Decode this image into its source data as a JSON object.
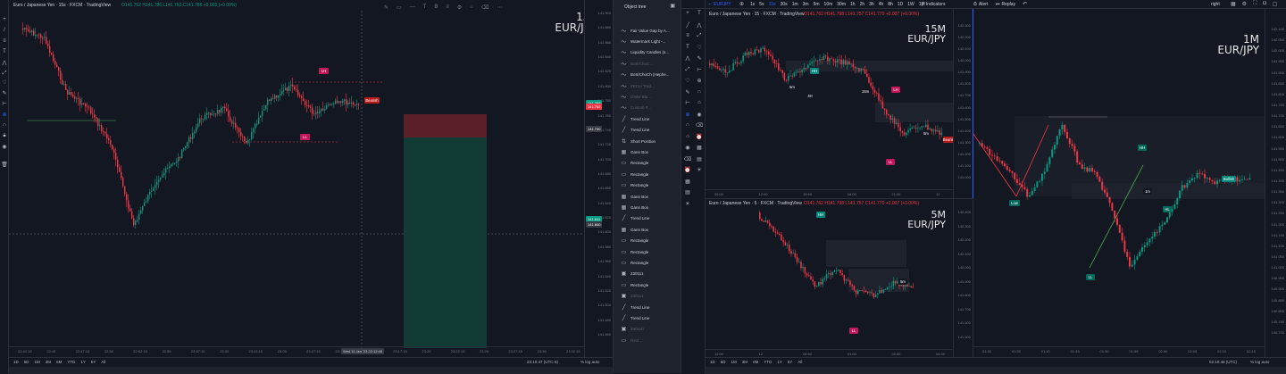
{
  "left": {
    "title": "Euro / Japanese Yen · 15s · FXCM · TradingView",
    "ohlc": "O141.762 H141.786 L141.762 C141.786 +0.003 (+0.00%)",
    "watermark": {
      "tf": "15S",
      "pair": "EUR/JPY"
    },
    "y_ticks": [
      "141.900",
      "141.880",
      "141.860",
      "141.840",
      "141.820",
      "141.800",
      "141.780",
      "141.760",
      "141.740",
      "141.720",
      "141.700",
      "141.680",
      "141.660",
      "141.640",
      "141.620",
      "141.600",
      "141.580",
      "141.560",
      "141.540",
      "141.520",
      "141.500",
      "141.480",
      "141.460"
    ],
    "price_tags": [
      {
        "text": "141.768",
        "color": "#089981"
      },
      {
        "text": "141.762",
        "color": "#f23645"
      },
      {
        "text": "141.730",
        "color": "#363a45"
      },
      {
        "text": "141.611",
        "color": "#089981"
      },
      {
        "text": "141.600",
        "color": "#363a45"
      }
    ],
    "x_ticks": [
      "22:42:15",
      "22:45",
      "22:47:15",
      "22:50",
      "22:52:15",
      "22:55",
      "22:57:15",
      "23:00",
      "23:02:15",
      "23:05",
      "23:07:15",
      "23:10",
      "23:15",
      "23:17:15",
      "23:20",
      "23:22:15",
      "23:25",
      "23:27:15",
      "23:30",
      "23:32:15"
    ],
    "crosshair_date": "Wed 11 Jan '23  22:12:45",
    "timeframes": [
      "1D",
      "5D",
      "1M",
      "3M",
      "6M",
      "YTD",
      "1Y",
      "5Y",
      "All"
    ],
    "clock": "23:10:47 (UTC-5)",
    "scale_opts": [
      "%",
      "log",
      "auto"
    ],
    "labels": {
      "ll": "LL",
      "lh": "LH",
      "bearish": "Bearish",
      "lh_small": "LH",
      "ll_small": "LL"
    }
  },
  "object_tree": {
    "title": "Object tree",
    "items": [
      {
        "label": "Fair Value Gap by A...",
        "icon": "indicator",
        "dim": false
      },
      {
        "label": "Watermark Light -...",
        "icon": "indicator",
        "dim": false
      },
      {
        "label": "Liquidity Candles (s...",
        "icon": "indicator",
        "dim": false
      },
      {
        "label": "BoS/ChoC...",
        "icon": "indicator",
        "dim": true
      },
      {
        "label": "BoS/ChoCh (Hephe...",
        "icon": "indicator",
        "dim": false
      },
      {
        "label": "ZECLI Trad...",
        "icon": "indicator",
        "dim": true
      },
      {
        "label": "Order Blo...",
        "icon": "indicator",
        "dim": true
      },
      {
        "label": "Custom P...",
        "icon": "indicator",
        "dim": true
      },
      {
        "label": "Trend Line",
        "icon": "line",
        "dim": false
      },
      {
        "label": "Trend Line",
        "icon": "line",
        "dim": false
      },
      {
        "label": "Short Position",
        "icon": "short",
        "dim": false
      },
      {
        "label": "Gann Box",
        "icon": "grid",
        "dim": false
      },
      {
        "label": "Rectangle",
        "icon": "rect",
        "dim": false
      },
      {
        "label": "Rectangle",
        "icon": "rect",
        "dim": false
      },
      {
        "label": "Rectangle",
        "icon": "rect",
        "dim": false
      },
      {
        "label": "Gann Box",
        "icon": "grid",
        "dim": false
      },
      {
        "label": "Gann Box",
        "icon": "grid",
        "dim": false
      },
      {
        "label": "Trend Line",
        "icon": "line",
        "dim": false
      },
      {
        "label": "Gann Box",
        "icon": "grid",
        "dim": false
      },
      {
        "label": "Rectangle",
        "icon": "rect",
        "dim": false
      },
      {
        "label": "Rectangle",
        "icon": "rect",
        "dim": false
      },
      {
        "label": "Rectangle",
        "icon": "rect",
        "dim": false
      },
      {
        "label": "230111",
        "icon": "folder",
        "dim": false
      },
      {
        "label": "Rectangle",
        "icon": "rect",
        "dim": false
      },
      {
        "label": "230111",
        "icon": "folder",
        "dim": true
      },
      {
        "label": "Trend Line",
        "icon": "line",
        "dim": false
      },
      {
        "label": "Trend Line",
        "icon": "line",
        "dim": false
      },
      {
        "label": "230110",
        "icon": "folder",
        "dim": true
      },
      {
        "label": "Rect...",
        "icon": "rect",
        "dim": true
      }
    ]
  },
  "topbar": {
    "symbol": "EURJPY",
    "intervals": [
      "1s",
      "5s",
      "15s",
      "30s",
      "1m",
      "3m",
      "5m",
      "10m",
      "30m",
      "1h",
      "2h",
      "3h",
      "4h",
      "8h",
      "1D",
      "1W",
      "1M"
    ],
    "indicators": "Indicators",
    "alert": "Alert",
    "replay": "Replay",
    "layout": "right"
  },
  "tr": {
    "title": "Euro / Japanese Yen · 15 · FXCM · TradingView",
    "ohlc": "O141.762 H141.798 L141.757 C141.770 +0.007 (+0.00%)",
    "watermark": {
      "tf": "15M",
      "pair": "EUR/JPY"
    },
    "y_ticks": [
      "142.300",
      "142.200",
      "142.100",
      "142.000",
      "141.900",
      "141.800",
      "141.700",
      "141.600",
      "141.500",
      "141.400",
      "141.300",
      "141.200",
      "141.100",
      "141.000"
    ],
    "x_ticks": [
      "09:00",
      "12:00",
      "15:00",
      "18:00",
      "21:00",
      "12"
    ],
    "labels": {
      "a": "5m",
      "b": "4H",
      "c": "15m",
      "d": "LH",
      "e": "Bearish",
      "f": "5m",
      "g": "LL",
      "h": "HH"
    }
  },
  "br": {
    "title": "Euro / Japanese Yen · 5 · FXCM · TradingView",
    "ohlc": "O141.762 H141.798 L141.757 C141.770 +0.007 (+0.00%)",
    "watermark": {
      "tf": "5M",
      "pair": "EUR/JPY"
    },
    "y_ticks": [
      "142.400",
      "142.300",
      "142.200",
      "142.100",
      "142.000",
      "141.900",
      "141.800",
      "141.700",
      "141.600",
      "141.500"
    ],
    "x_ticks": [
      "12:00",
      "12",
      "06:00",
      "01:00",
      "03:00",
      "04:00"
    ],
    "timeframes": [
      "1D",
      "5D",
      "1M",
      "3M",
      "6M",
      "YTD",
      "1Y",
      "5Y",
      "All"
    ],
    "labels": {
      "a": "HH",
      "b": "5m",
      "c": "LL"
    }
  },
  "r": {
    "watermark": {
      "tf": "1M",
      "pair": "EUR/JPY"
    },
    "y_ticks": [
      "142.100",
      "142.050",
      "142.000",
      "141.950",
      "141.900",
      "141.850",
      "141.800",
      "141.750",
      "141.700",
      "141.650",
      "141.600",
      "141.550",
      "141.500",
      "141.450",
      "141.400",
      "141.350",
      "141.300",
      "141.250",
      "141.200",
      "141.150",
      "141.100",
      "141.050",
      "141.000",
      "140.950",
      "140.900",
      "140.850",
      "140.800",
      "140.750",
      "140.700"
    ],
    "x_ticks": [
      "01:30",
      "01:35",
      "01:40",
      "01:45",
      "01:50",
      "01:55",
      "02:00",
      "02:05",
      "02:10",
      "02:15"
    ],
    "clock": "02:10:48 (UTC)",
    "scale_opts": [
      "%",
      "log",
      "auto"
    ],
    "labels": {
      "low": "Low",
      "ll": "LL",
      "lh": "LH",
      "hh": "HH",
      "hl": "HL",
      "bullish": "Bullish",
      "m": "1m"
    }
  }
}
